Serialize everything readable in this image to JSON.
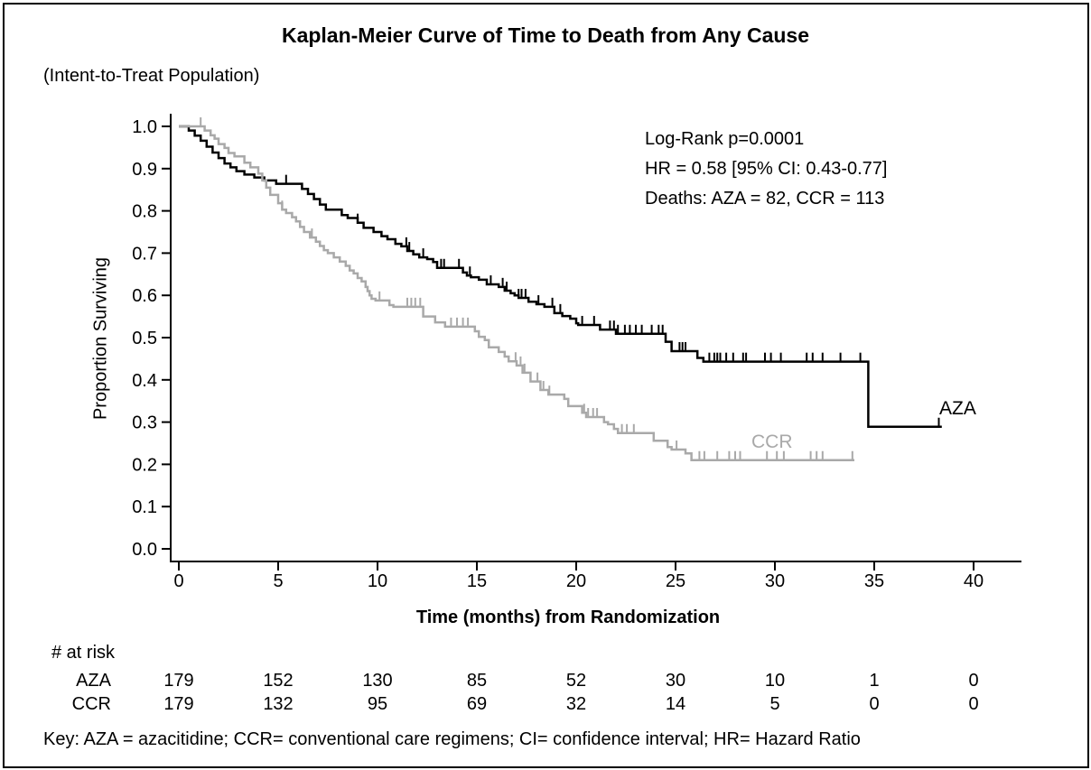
{
  "figure": {
    "title": "Kaplan-Meier Curve of Time to Death from Any Cause",
    "subtitle": "(Intent-to-Treat Population)",
    "key_note": "Key: AZA = azacitidine; CCR= conventional care regimens; CI= confidence interval; HR= Hazard Ratio"
  },
  "chart_data": {
    "type": "line",
    "subtype": "kaplan-meier-step",
    "title": "Kaplan-Meier Curve of Time to Death from Any Cause",
    "subtitle": "(Intent-to-Treat Population)",
    "xlabel": "Time (months) from Randomization",
    "ylabel": "Proportion Surviving",
    "xlim": [
      0,
      40
    ],
    "ylim": [
      0.0,
      1.0
    ],
    "grid": false,
    "xticks": [
      0,
      5,
      10,
      15,
      20,
      25,
      30,
      35,
      40
    ],
    "ytick_labels": [
      "0.0",
      "0.1",
      "0.2",
      "0.3",
      "0.4",
      "0.5",
      "0.6",
      "0.7",
      "0.8",
      "0.9",
      "1.0"
    ],
    "annotations": [
      "Log-Rank p=0.0001",
      "HR = 0.58 [95% CI: 0.43-0.77]",
      "Deaths: AZA = 82, CCR = 113"
    ],
    "series": [
      {
        "name": "AZA",
        "color": "#000000",
        "end_time": 38.4,
        "steps": [
          [
            0,
            1.0
          ],
          [
            0.5,
            0.99
          ],
          [
            0.8,
            0.978
          ],
          [
            1.1,
            0.966
          ],
          [
            1.4,
            0.952
          ],
          [
            1.7,
            0.938
          ],
          [
            2.0,
            0.925
          ],
          [
            2.3,
            0.912
          ],
          [
            2.6,
            0.903
          ],
          [
            2.9,
            0.894
          ],
          [
            3.3,
            0.886
          ],
          [
            3.8,
            0.879
          ],
          [
            4.3,
            0.872
          ],
          [
            4.9,
            0.864
          ],
          [
            6.2,
            0.852
          ],
          [
            6.5,
            0.84
          ],
          [
            6.8,
            0.828
          ],
          [
            7.1,
            0.815
          ],
          [
            7.4,
            0.803
          ],
          [
            8.2,
            0.79
          ],
          [
            8.5,
            0.783
          ],
          [
            9.0,
            0.772
          ],
          [
            9.3,
            0.76
          ],
          [
            9.8,
            0.75
          ],
          [
            10.2,
            0.74
          ],
          [
            10.5,
            0.733
          ],
          [
            10.9,
            0.722
          ],
          [
            11.2,
            0.716
          ],
          [
            11.5,
            0.705
          ],
          [
            11.8,
            0.697
          ],
          [
            12.1,
            0.69
          ],
          [
            12.5,
            0.686
          ],
          [
            12.8,
            0.679
          ],
          [
            13.0,
            0.665
          ],
          [
            14.3,
            0.654
          ],
          [
            14.5,
            0.647
          ],
          [
            14.7,
            0.643
          ],
          [
            15.1,
            0.637
          ],
          [
            15.5,
            0.626
          ],
          [
            16.1,
            0.62
          ],
          [
            16.4,
            0.611
          ],
          [
            16.7,
            0.605
          ],
          [
            16.9,
            0.6
          ],
          [
            17.1,
            0.594
          ],
          [
            17.6,
            0.585
          ],
          [
            18.0,
            0.579
          ],
          [
            18.4,
            0.573
          ],
          [
            18.9,
            0.558
          ],
          [
            19.3,
            0.551
          ],
          [
            19.7,
            0.545
          ],
          [
            20.0,
            0.534
          ],
          [
            20.1,
            0.53
          ],
          [
            21.2,
            0.519
          ],
          [
            22.0,
            0.509
          ],
          [
            24.5,
            0.49
          ],
          [
            24.8,
            0.468
          ],
          [
            26.1,
            0.452
          ],
          [
            26.4,
            0.443
          ],
          [
            34.7,
            0.289
          ]
        ],
        "censor_times": [
          5.4,
          9.0,
          11.45,
          11.6,
          12.3,
          13.2,
          13.35,
          14.1,
          14.65,
          15.7,
          16.3,
          16.5,
          17.1,
          17.25,
          17.45,
          18.1,
          18.8,
          19.2,
          20.3,
          20.9,
          21.7,
          21.9,
          22.1,
          22.45,
          22.7,
          23.0,
          23.3,
          23.8,
          24.15,
          24.35,
          25.2,
          25.35,
          25.5,
          26.7,
          26.95,
          27.1,
          27.25,
          27.55,
          27.9,
          28.4,
          28.55,
          29.5,
          29.8,
          30.3,
          31.6,
          31.9,
          32.4,
          33.3,
          34.3,
          38.25
        ]
      },
      {
        "name": "CCR",
        "color": "#a9a9a9",
        "end_time": 34.0,
        "steps": [
          [
            0,
            1.0
          ],
          [
            1.3,
            0.99
          ],
          [
            1.6,
            0.979
          ],
          [
            1.8,
            0.971
          ],
          [
            2.0,
            0.958
          ],
          [
            2.3,
            0.949
          ],
          [
            2.5,
            0.937
          ],
          [
            2.8,
            0.929
          ],
          [
            3.3,
            0.914
          ],
          [
            3.6,
            0.903
          ],
          [
            4.0,
            0.888
          ],
          [
            4.2,
            0.872
          ],
          [
            4.4,
            0.855
          ],
          [
            4.6,
            0.838
          ],
          [
            5.0,
            0.818
          ],
          [
            5.2,
            0.803
          ],
          [
            5.4,
            0.795
          ],
          [
            5.7,
            0.785
          ],
          [
            5.9,
            0.775
          ],
          [
            6.1,
            0.762
          ],
          [
            6.3,
            0.75
          ],
          [
            6.6,
            0.737
          ],
          [
            6.9,
            0.727
          ],
          [
            7.1,
            0.717
          ],
          [
            7.3,
            0.707
          ],
          [
            7.5,
            0.7
          ],
          [
            7.8,
            0.69
          ],
          [
            8.1,
            0.68
          ],
          [
            8.4,
            0.67
          ],
          [
            8.6,
            0.659
          ],
          [
            8.8,
            0.652
          ],
          [
            9.0,
            0.641
          ],
          [
            9.2,
            0.633
          ],
          [
            9.4,
            0.62
          ],
          [
            9.5,
            0.61
          ],
          [
            9.6,
            0.6
          ],
          [
            9.7,
            0.592
          ],
          [
            9.9,
            0.588
          ],
          [
            10.6,
            0.577
          ],
          [
            10.8,
            0.573
          ],
          [
            12.3,
            0.55
          ],
          [
            12.9,
            0.536
          ],
          [
            13.4,
            0.526
          ],
          [
            14.9,
            0.515
          ],
          [
            15.1,
            0.502
          ],
          [
            15.4,
            0.494
          ],
          [
            15.6,
            0.477
          ],
          [
            16.1,
            0.466
          ],
          [
            16.4,
            0.455
          ],
          [
            16.6,
            0.444
          ],
          [
            17.0,
            0.434
          ],
          [
            17.3,
            0.417
          ],
          [
            17.7,
            0.396
          ],
          [
            18.2,
            0.376
          ],
          [
            18.6,
            0.365
          ],
          [
            19.4,
            0.355
          ],
          [
            19.6,
            0.338
          ],
          [
            20.3,
            0.322
          ],
          [
            20.5,
            0.312
          ],
          [
            21.4,
            0.3
          ],
          [
            21.6,
            0.295
          ],
          [
            21.9,
            0.284
          ],
          [
            22.1,
            0.274
          ],
          [
            23.9,
            0.256
          ],
          [
            24.6,
            0.241
          ],
          [
            24.8,
            0.235
          ],
          [
            25.5,
            0.226
          ],
          [
            25.8,
            0.21
          ]
        ],
        "censor_times": [
          1.1,
          5.2,
          6.7,
          10.1,
          11.5,
          11.7,
          11.9,
          12.15,
          13.7,
          14.0,
          14.3,
          14.55,
          16.95,
          17.2,
          17.4,
          18.05,
          18.35,
          18.65,
          20.4,
          20.6,
          20.85,
          21.05,
          22.3,
          22.55,
          22.9,
          25.05,
          26.2,
          26.45,
          27.1,
          27.7,
          28.0,
          28.25,
          29.6,
          30.1,
          30.45,
          31.8,
          32.1,
          32.4,
          33.9
        ]
      }
    ],
    "at_risk": {
      "header": "# at risk",
      "times": [
        0,
        5,
        10,
        15,
        20,
        25,
        30,
        35,
        40
      ],
      "rows": [
        {
          "label": "AZA",
          "counts": [
            179,
            152,
            130,
            85,
            52,
            30,
            10,
            1,
            0
          ]
        },
        {
          "label": "CCR",
          "counts": [
            179,
            132,
            95,
            69,
            32,
            14,
            5,
            0,
            0
          ]
        }
      ]
    }
  }
}
